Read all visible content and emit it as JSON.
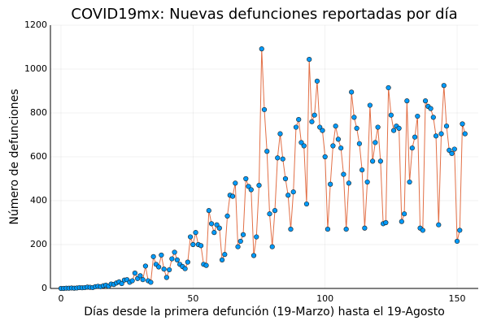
{
  "chart_data": {
    "type": "line",
    "markers": true,
    "title": "COVID19mx: Nuevas defunciones reportadas por día",
    "xlabel": "Días desde la primera defunción (19-Marzo) hasta el 19-Agosto",
    "ylabel": "Número de defunciones",
    "xlim": [
      -4,
      158
    ],
    "xticks": [
      0,
      50,
      100,
      150
    ],
    "ylim": [
      0,
      1200
    ],
    "yticks": [
      0,
      200,
      400,
      600,
      800,
      1000,
      1200
    ],
    "grid": true,
    "line_color": "#e26f46",
    "marker_color": "#009af9",
    "x": [
      0,
      1,
      2,
      3,
      4,
      5,
      6,
      7,
      8,
      9,
      10,
      11,
      12,
      13,
      14,
      15,
      16,
      17,
      18,
      19,
      20,
      21,
      22,
      23,
      24,
      25,
      26,
      27,
      28,
      29,
      30,
      31,
      32,
      33,
      34,
      35,
      36,
      37,
      38,
      39,
      40,
      41,
      42,
      43,
      44,
      45,
      46,
      47,
      48,
      49,
      50,
      51,
      52,
      53,
      54,
      55,
      56,
      57,
      58,
      59,
      60,
      61,
      62,
      63,
      64,
      65,
      66,
      67,
      68,
      69,
      70,
      71,
      72,
      73,
      74,
      75,
      76,
      77,
      78,
      79,
      80,
      81,
      82,
      83,
      84,
      85,
      86,
      87,
      88,
      89,
      90,
      91,
      92,
      93,
      94,
      95,
      96,
      97,
      98,
      99,
      100,
      101,
      102,
      103,
      104,
      105,
      106,
      107,
      108,
      109,
      110,
      111,
      112,
      113,
      114,
      115,
      116,
      117,
      118,
      119,
      120,
      121,
      122,
      123,
      124,
      125,
      126,
      127,
      128,
      129,
      130,
      131,
      132,
      133,
      134,
      135,
      136,
      137,
      138,
      139,
      140,
      141,
      142,
      143,
      144,
      145,
      146,
      147,
      148,
      149,
      150,
      151,
      152,
      153
    ],
    "values": [
      0,
      0,
      1,
      1,
      2,
      1,
      2,
      4,
      3,
      4,
      6,
      5,
      4,
      8,
      10,
      8,
      12,
      15,
      10,
      20,
      18,
      25,
      30,
      22,
      38,
      40,
      28,
      35,
      70,
      45,
      58,
      40,
      102,
      35,
      28,
      145,
      110,
      98,
      152,
      88,
      50,
      85,
      135,
      165,
      130,
      110,
      100,
      90,
      120,
      235,
      200,
      255,
      200,
      195,
      110,
      105,
      355,
      295,
      255,
      290,
      275,
      130,
      155,
      330,
      425,
      420,
      480,
      190,
      215,
      245,
      500,
      465,
      450,
      150,
      235,
      470,
      1092,
      815,
      625,
      340,
      190,
      355,
      595,
      705,
      590,
      500,
      425,
      270,
      440,
      735,
      770,
      665,
      650,
      385,
      1044,
      760,
      790,
      945,
      735,
      720,
      600,
      270,
      475,
      650,
      740,
      680,
      640,
      520,
      270,
      480,
      895,
      780,
      730,
      660,
      540,
      275,
      485,
      835,
      580,
      665,
      735,
      580,
      295,
      300,
      915,
      790,
      720,
      740,
      730,
      305,
      340,
      855,
      485,
      640,
      690,
      785,
      275,
      265,
      855,
      830,
      820,
      780,
      695,
      290,
      705,
      925,
      740,
      630,
      615,
      635,
      215,
      265,
      750,
      705
    ]
  }
}
